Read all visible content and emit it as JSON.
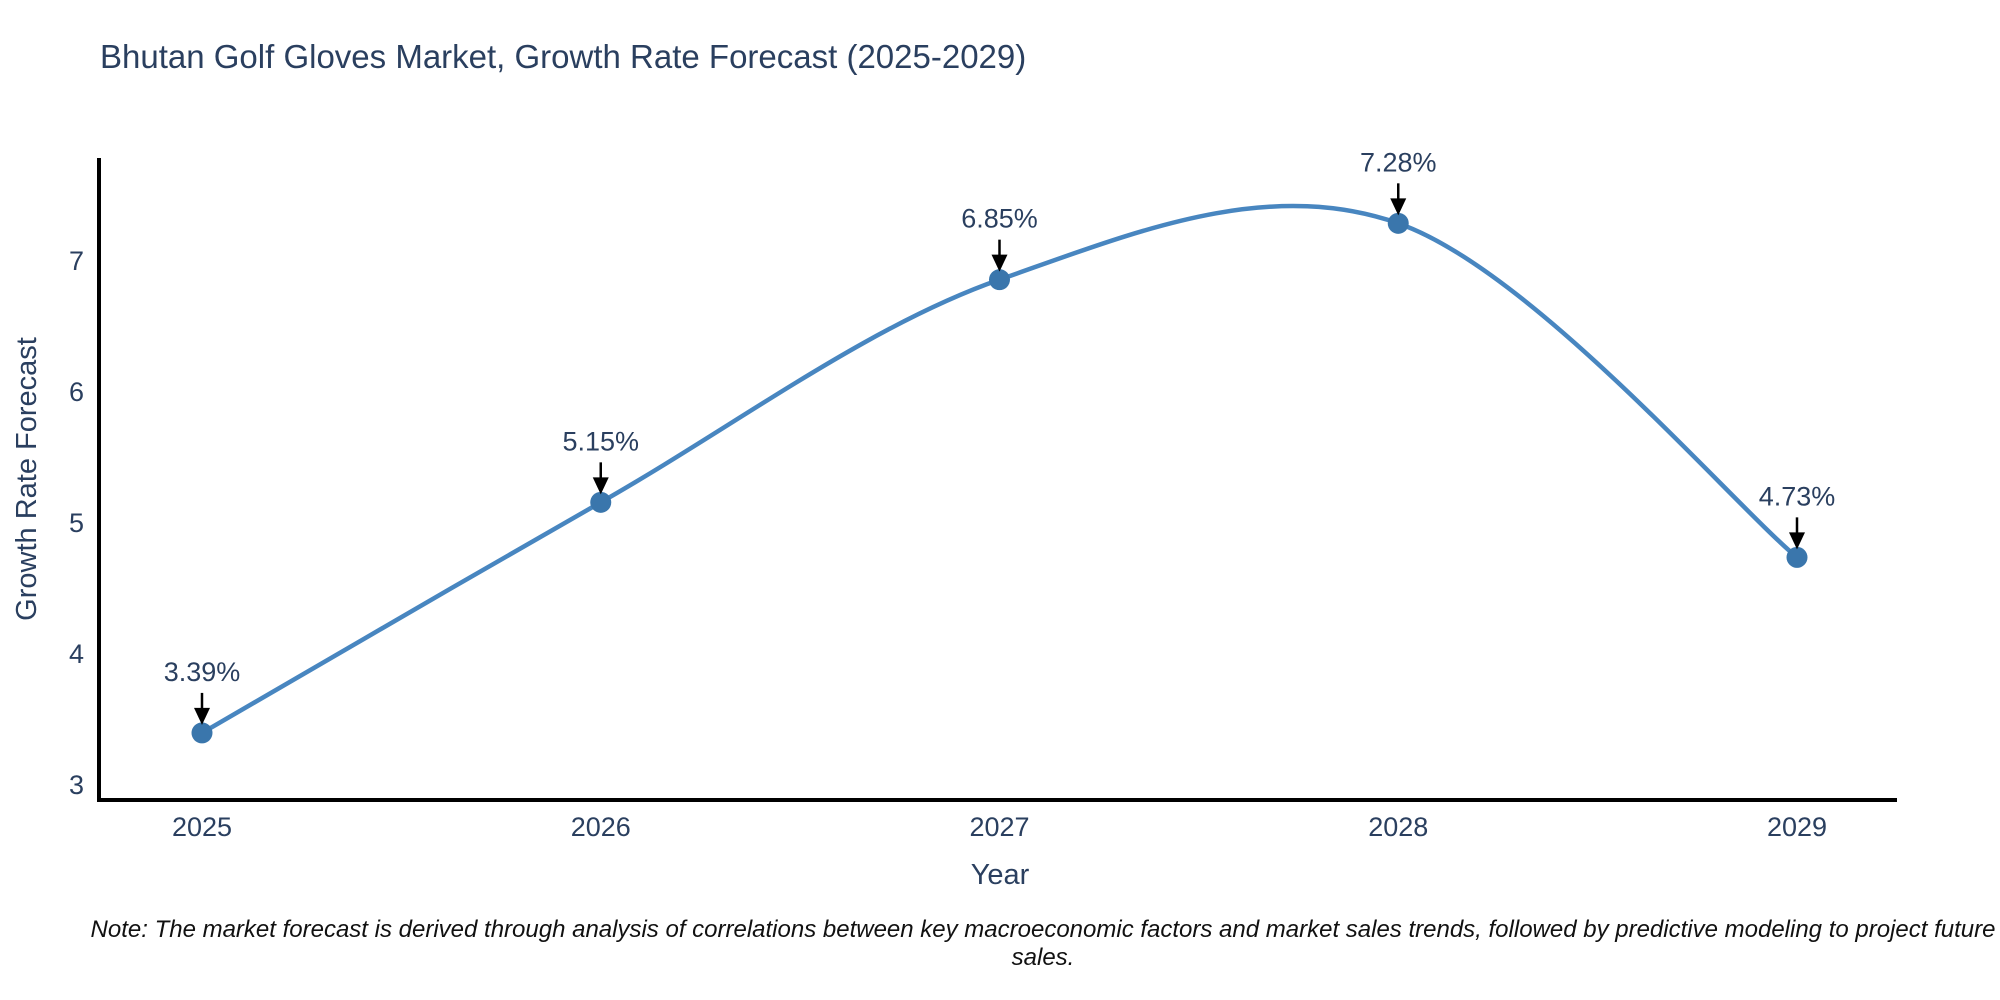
{
  "title": "Bhutan Golf Gloves Market, Growth Rate Forecast (2025-2029)",
  "note": "Note: The market forecast is derived through analysis of correlations between key macroeconomic factors and market sales trends, followed by predictive modeling to project future sales.",
  "chart_data": {
    "type": "line",
    "title": "Bhutan Golf Gloves Market, Growth Rate Forecast (2025-2029)",
    "xlabel": "Year",
    "ylabel": "Growth Rate Forecast",
    "x": [
      2025,
      2026,
      2027,
      2028,
      2029
    ],
    "values": [
      3.39,
      5.15,
      6.85,
      7.28,
      4.73
    ],
    "point_labels": [
      "3.39%",
      "5.15%",
      "6.85%",
      "7.28%",
      "4.73%"
    ],
    "xticks": [
      2025,
      2026,
      2027,
      2028,
      2029
    ],
    "xtick_labels": [
      "2025",
      "2026",
      "2027",
      "2028",
      "2029"
    ],
    "yticks": [
      3,
      4,
      5,
      6,
      7
    ],
    "ytick_labels": [
      "3",
      "4",
      "5",
      "6",
      "7"
    ],
    "xlim": [
      2024.74,
      2029.25
    ],
    "ylim": [
      2.88,
      7.76
    ],
    "line_shape": "spline",
    "grid": false,
    "legend": "none",
    "colors": {
      "line": "#4886c0",
      "marker": "#3a76ac",
      "arrow": "#000000",
      "axis": "#000000",
      "text": "#2a3f5f"
    }
  }
}
